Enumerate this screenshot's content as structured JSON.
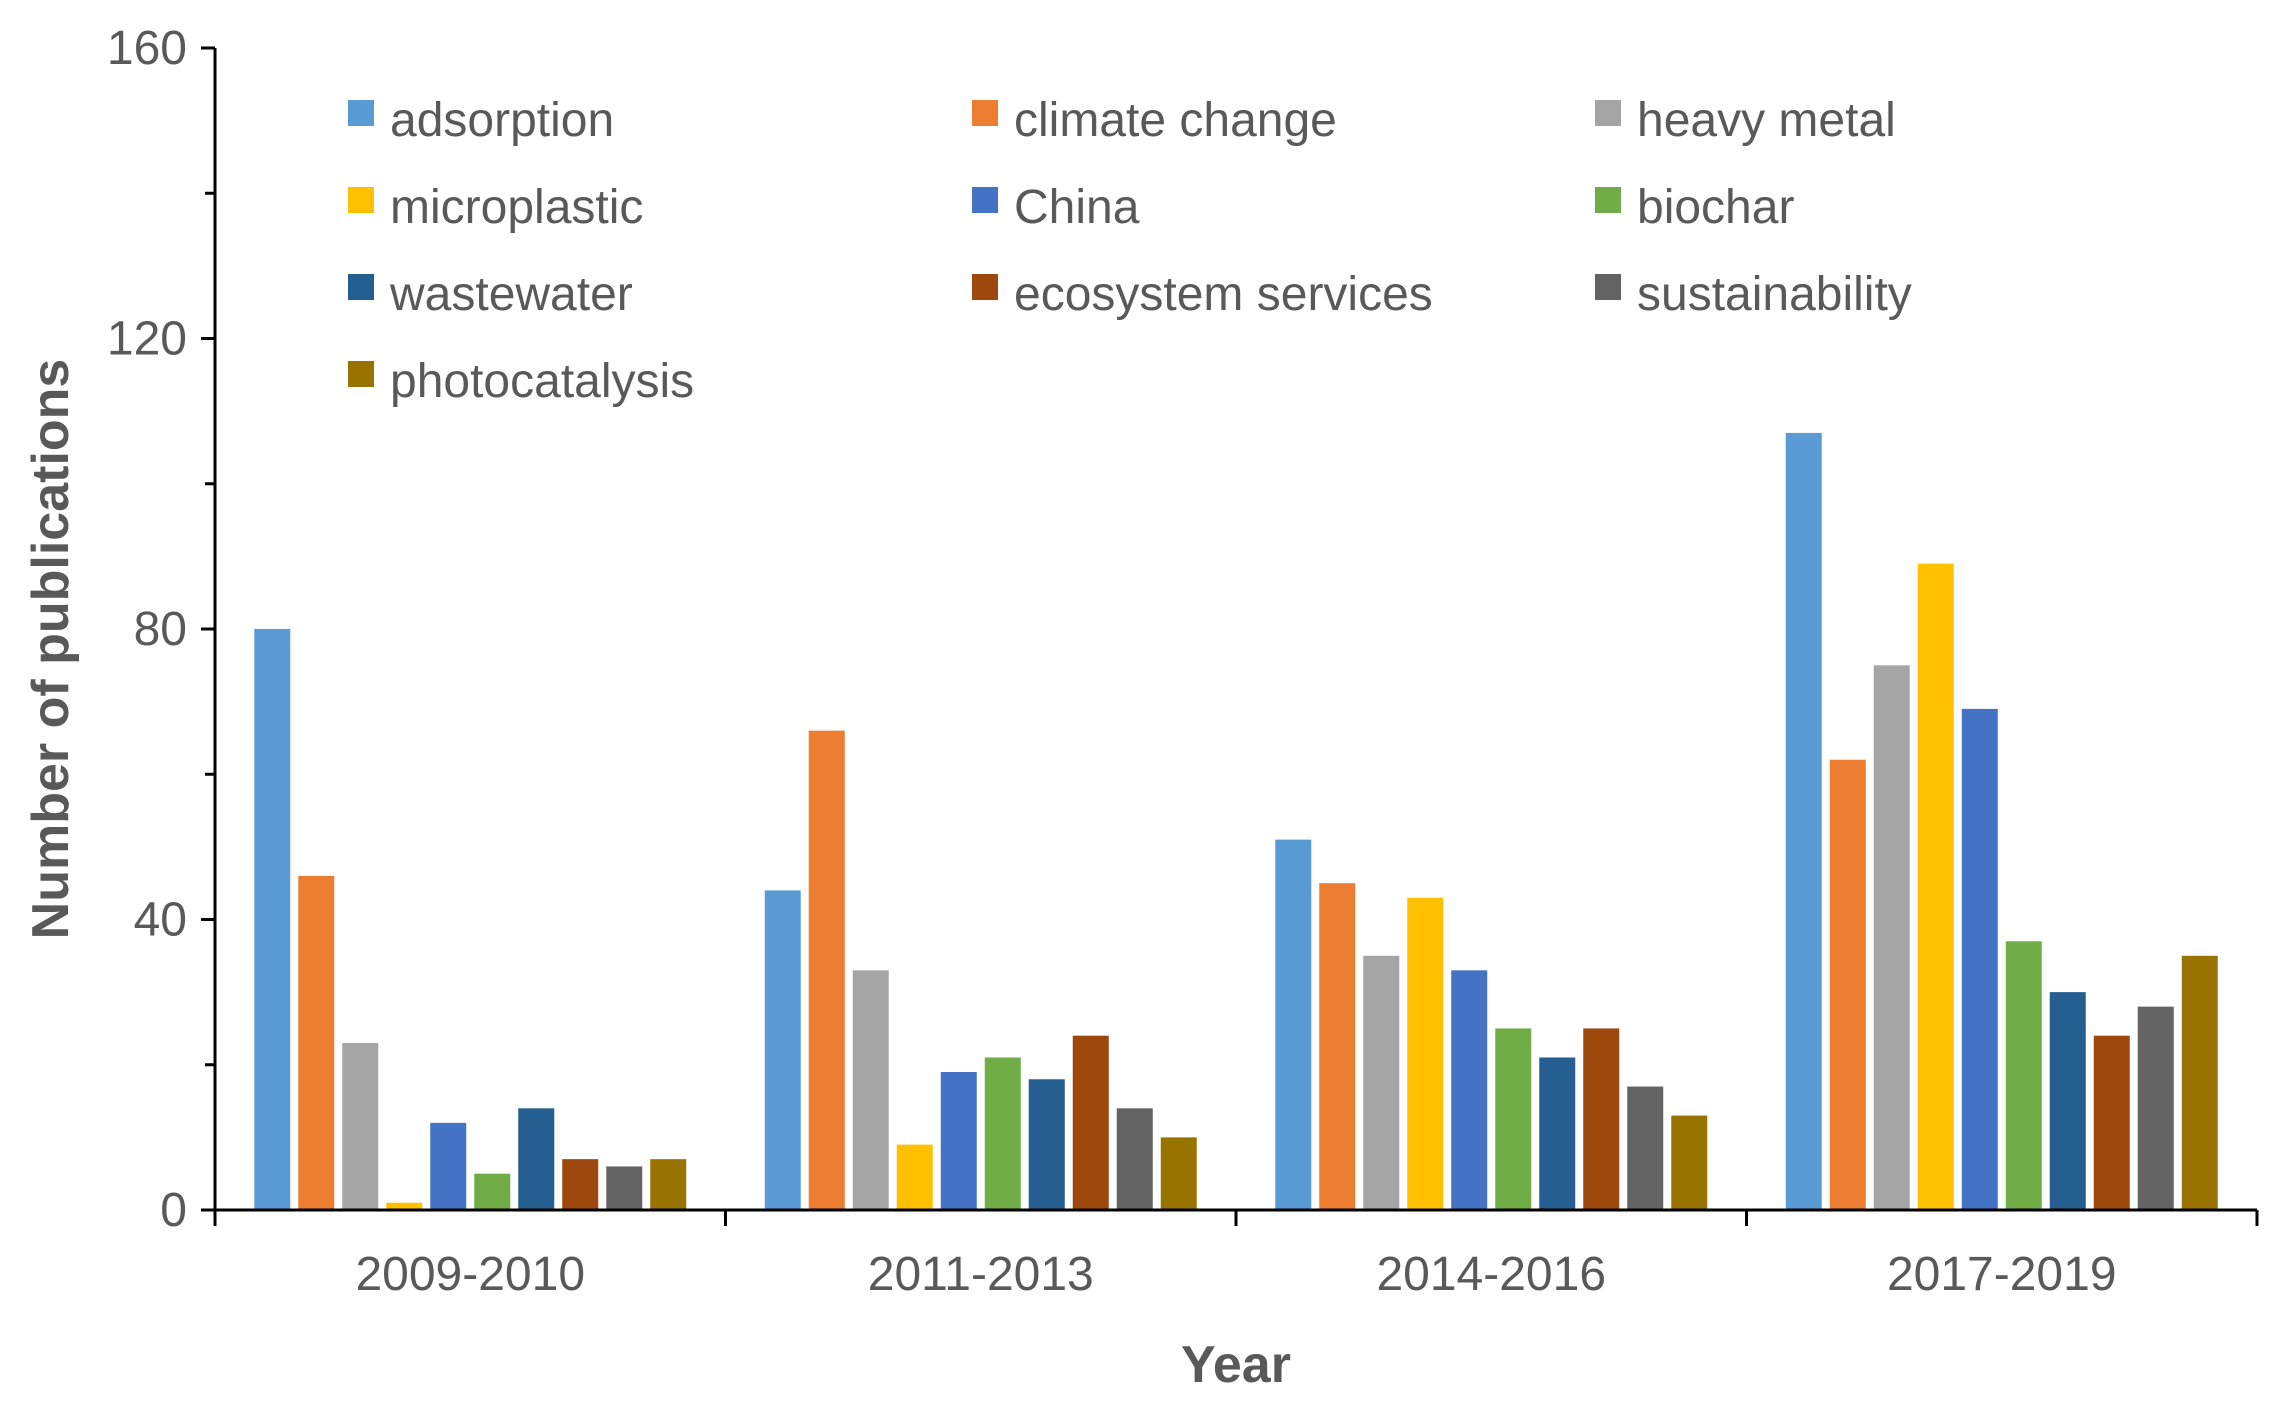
{
  "chart_data": {
    "type": "bar",
    "title": "",
    "xlabel": "Year",
    "ylabel": "Number of publications",
    "ylim": [
      0,
      160
    ],
    "yticks": [
      0,
      40,
      80,
      120,
      160
    ],
    "grid": false,
    "legend_position": "top",
    "categories": [
      "2009-2010",
      "2011-2013",
      "2014-2016",
      "2017-2019"
    ],
    "series": [
      {
        "name": "adsorption",
        "color": "#5B9BD5",
        "values": [
          80,
          44,
          51,
          107
        ]
      },
      {
        "name": "climate change",
        "color": "#ED7D31",
        "values": [
          46,
          66,
          45,
          62
        ]
      },
      {
        "name": "heavy metal",
        "color": "#A5A5A5",
        "values": [
          23,
          33,
          35,
          75
        ]
      },
      {
        "name": "microplastic",
        "color": "#FFC000",
        "values": [
          1,
          9,
          43,
          89
        ]
      },
      {
        "name": "China",
        "color": "#4472C4",
        "values": [
          12,
          19,
          33,
          69
        ]
      },
      {
        "name": "biochar",
        "color": "#70AD47",
        "values": [
          5,
          21,
          25,
          37
        ]
      },
      {
        "name": "wastewater",
        "color": "#255E91",
        "values": [
          14,
          18,
          21,
          30
        ]
      },
      {
        "name": "ecosystem services",
        "color": "#9E480E",
        "values": [
          7,
          24,
          25,
          24
        ]
      },
      {
        "name": "sustainability",
        "color": "#636363",
        "values": [
          6,
          14,
          17,
          28
        ]
      },
      {
        "name": "photocatalysis",
        "color": "#997300",
        "values": [
          7,
          10,
          13,
          35
        ]
      }
    ]
  }
}
